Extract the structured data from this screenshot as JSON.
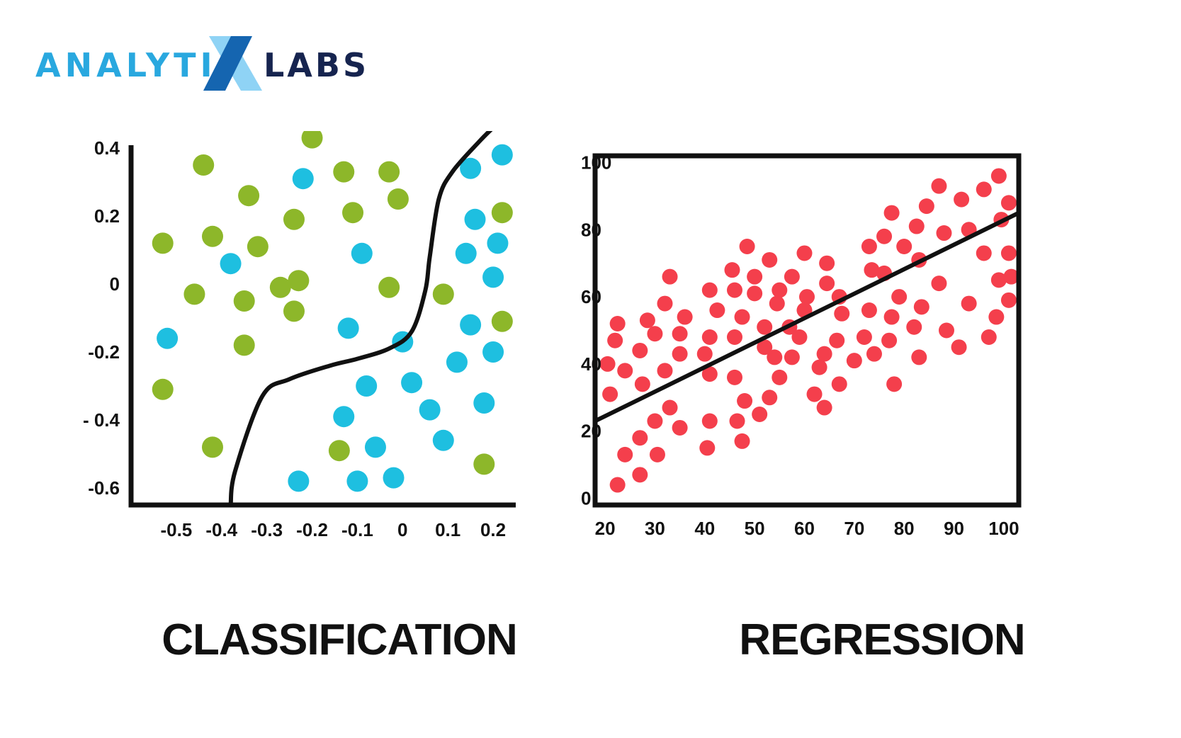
{
  "logo": {
    "part1": "ANALYTI",
    "part2": "X",
    "part3": "LABS",
    "color_main": "#29a8df",
    "color_x_light": "#8fd3f5",
    "color_x_dark": "#1565b0",
    "color_labs": "#16244f"
  },
  "chart_data": [
    {
      "type": "scatter",
      "title": "CLASSIFICATION",
      "xlabel": "",
      "ylabel": "",
      "xlim": [
        -0.6,
        0.25
      ],
      "ylim": [
        -0.65,
        0.45
      ],
      "x_ticks": [
        "-0.5",
        "-0.4",
        "-0.3",
        "-0.2",
        "-0.1",
        "0",
        "0.1",
        "0.2"
      ],
      "x_tick_values": [
        -0.5,
        -0.4,
        -0.3,
        -0.2,
        -0.1,
        0,
        0.1,
        0.2
      ],
      "y_ticks": [
        "0.4",
        "0.2",
        "0",
        "-0.2",
        "- 0.4",
        "-0.6"
      ],
      "y_tick_values": [
        0.4,
        0.2,
        0,
        -0.2,
        -0.4,
        -0.6
      ],
      "grid": false,
      "series": [
        {
          "color": "#8db72a",
          "points": [
            [
              -0.44,
              0.35
            ],
            [
              -0.34,
              0.26
            ],
            [
              -0.53,
              0.12
            ],
            [
              -0.42,
              0.14
            ],
            [
              -0.32,
              0.11
            ],
            [
              -0.46,
              -0.03
            ],
            [
              -0.35,
              -0.05
            ],
            [
              -0.27,
              -0.01
            ],
            [
              -0.23,
              0.01
            ],
            [
              -0.35,
              -0.18
            ],
            [
              -0.53,
              -0.31
            ],
            [
              -0.42,
              -0.48
            ],
            [
              -0.2,
              0.43
            ],
            [
              -0.13,
              0.33
            ],
            [
              -0.03,
              0.33
            ],
            [
              -0.24,
              0.19
            ],
            [
              -0.11,
              0.21
            ],
            [
              -0.01,
              0.25
            ],
            [
              -0.03,
              -0.01
            ],
            [
              -0.24,
              -0.08
            ],
            [
              0.09,
              -0.03
            ],
            [
              0.22,
              0.21
            ],
            [
              0.22,
              -0.11
            ],
            [
              -0.14,
              -0.49
            ],
            [
              0.18,
              -0.53
            ]
          ]
        },
        {
          "color": "#1ebfe0",
          "points": [
            [
              -0.22,
              0.31
            ],
            [
              -0.09,
              0.09
            ],
            [
              -0.38,
              0.06
            ],
            [
              -0.12,
              -0.13
            ],
            [
              -0.52,
              -0.16
            ],
            [
              0.0,
              -0.17
            ],
            [
              -0.08,
              -0.3
            ],
            [
              0.02,
              -0.29
            ],
            [
              0.06,
              -0.37
            ],
            [
              -0.13,
              -0.39
            ],
            [
              -0.06,
              -0.48
            ],
            [
              0.09,
              -0.46
            ],
            [
              -0.23,
              -0.58
            ],
            [
              -0.1,
              -0.58
            ],
            [
              -0.02,
              -0.57
            ],
            [
              0.15,
              0.34
            ],
            [
              0.22,
              0.38
            ],
            [
              0.16,
              0.19
            ],
            [
              0.21,
              0.12
            ],
            [
              0.14,
              0.09
            ],
            [
              0.2,
              0.02
            ],
            [
              0.15,
              -0.12
            ],
            [
              0.12,
              -0.23
            ],
            [
              0.2,
              -0.2
            ],
            [
              0.18,
              -0.35
            ]
          ]
        }
      ],
      "boundary": [
        [
          -0.38,
          -0.65
        ],
        [
          -0.37,
          -0.55
        ],
        [
          -0.31,
          -0.33
        ],
        [
          -0.25,
          -0.28
        ],
        [
          -0.16,
          -0.24
        ],
        [
          -0.1,
          -0.22
        ],
        [
          -0.03,
          -0.19
        ],
        [
          0.02,
          -0.14
        ],
        [
          0.05,
          -0.02
        ],
        [
          0.06,
          0.08
        ],
        [
          0.08,
          0.25
        ],
        [
          0.11,
          0.33
        ],
        [
          0.17,
          0.42
        ],
        [
          0.2,
          0.46
        ]
      ]
    },
    {
      "type": "scatter",
      "title": "REGRESSION",
      "xlabel": "",
      "ylabel": "",
      "xlim": [
        18,
        103
      ],
      "ylim": [
        -2,
        102
      ],
      "x_ticks": [
        "20",
        "30",
        "40",
        "50",
        "60",
        "70",
        "80",
        "90",
        "100"
      ],
      "x_tick_values": [
        20,
        30,
        40,
        50,
        60,
        70,
        80,
        90,
        100
      ],
      "y_ticks": [
        "100",
        "80",
        "60",
        "40",
        "20",
        "0"
      ],
      "y_tick_values": [
        100,
        80,
        60,
        40,
        20,
        0
      ],
      "grid": false,
      "series": [
        {
          "color": "#f43f4c",
          "points": [
            [
              20.5,
              40
            ],
            [
              21,
              31
            ],
            [
              22,
              47
            ],
            [
              22.5,
              52
            ],
            [
              24,
              38
            ],
            [
              22.5,
              4
            ],
            [
              24,
              13
            ],
            [
              27,
              7
            ],
            [
              27,
              18
            ],
            [
              27.5,
              34
            ],
            [
              27,
              44
            ],
            [
              28.5,
              53
            ],
            [
              30,
              49
            ],
            [
              30,
              23
            ],
            [
              30.5,
              13
            ],
            [
              32,
              38
            ],
            [
              32,
              58
            ],
            [
              33,
              27
            ],
            [
              33,
              66
            ],
            [
              35,
              21
            ],
            [
              35,
              49
            ],
            [
              35,
              43
            ],
            [
              36,
              54
            ],
            [
              40,
              43
            ],
            [
              40.5,
              15
            ],
            [
              41,
              37
            ],
            [
              41,
              62
            ],
            [
              41,
              48
            ],
            [
              41,
              23
            ],
            [
              42.5,
              56
            ],
            [
              45.5,
              68
            ],
            [
              46,
              62
            ],
            [
              46,
              48
            ],
            [
              46,
              36
            ],
            [
              46.5,
              23
            ],
            [
              47.5,
              17
            ],
            [
              48,
              29
            ],
            [
              47.5,
              54
            ],
            [
              48.5,
              75
            ],
            [
              50,
              61
            ],
            [
              50,
              66
            ],
            [
              51,
              25
            ],
            [
              52,
              45
            ],
            [
              52,
              51
            ],
            [
              53,
              71
            ],
            [
              53,
              30
            ],
            [
              54,
              42
            ],
            [
              54.5,
              58
            ],
            [
              55,
              62
            ],
            [
              55,
              36
            ],
            [
              57,
              51
            ],
            [
              57.5,
              42
            ],
            [
              57.5,
              66
            ],
            [
              59,
              48
            ],
            [
              60,
              73
            ],
            [
              60,
              56
            ],
            [
              60.5,
              60
            ],
            [
              62,
              31
            ],
            [
              63,
              39
            ],
            [
              64,
              43
            ],
            [
              64,
              27
            ],
            [
              64.5,
              64
            ],
            [
              64.5,
              70
            ],
            [
              66.5,
              47
            ],
            [
              67,
              60
            ],
            [
              67,
              34
            ],
            [
              67.5,
              55
            ],
            [
              70,
              41
            ],
            [
              72,
              48
            ],
            [
              73,
              56
            ],
            [
              73,
              75
            ],
            [
              73.5,
              68
            ],
            [
              74,
              43
            ],
            [
              76,
              67
            ],
            [
              76,
              78
            ],
            [
              77,
              47
            ],
            [
              77.5,
              54
            ],
            [
              77.5,
              85
            ],
            [
              78,
              34
            ],
            [
              79,
              60
            ],
            [
              80,
              75
            ],
            [
              82,
              51
            ],
            [
              82.5,
              81
            ],
            [
              83,
              71
            ],
            [
              83,
              42
            ],
            [
              83.5,
              57
            ],
            [
              84.5,
              87
            ],
            [
              87,
              64
            ],
            [
              87,
              93
            ],
            [
              88,
              79
            ],
            [
              88.5,
              50
            ],
            [
              91,
              45
            ],
            [
              91.5,
              89
            ],
            [
              93,
              80
            ],
            [
              93,
              58
            ],
            [
              96,
              92
            ],
            [
              96,
              73
            ],
            [
              97,
              48
            ],
            [
              98.5,
              54
            ],
            [
              99,
              65
            ],
            [
              99,
              96
            ],
            [
              99.5,
              83
            ],
            [
              101,
              88
            ],
            [
              101,
              73
            ],
            [
              101,
              59
            ],
            [
              101.5,
              66
            ]
          ]
        }
      ],
      "fit_line": [
        [
          18,
          23
        ],
        [
          103,
          85
        ]
      ]
    }
  ]
}
